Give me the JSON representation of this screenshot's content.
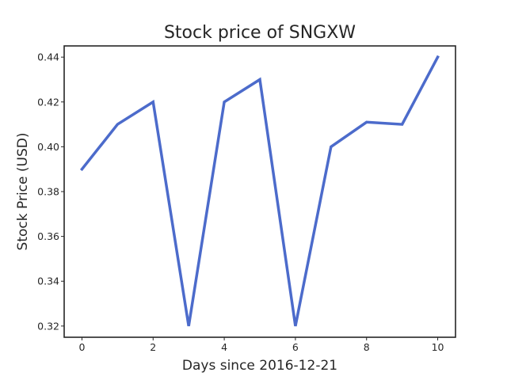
{
  "chart_data": {
    "type": "line",
    "title": "Stock price of SNGXW",
    "xlabel": "Days since 2016-12-21",
    "ylabel": "Stock Price (USD)",
    "xlim": [
      -0.5,
      10.5
    ],
    "ylim": [
      0.315,
      0.445
    ],
    "x_ticks": [
      0,
      2,
      4,
      6,
      8,
      10
    ],
    "y_ticks": [
      0.32,
      0.34,
      0.36,
      0.38,
      0.4,
      0.42,
      0.44
    ],
    "x_tick_labels": [
      "0",
      "2",
      "4",
      "6",
      "8",
      "10"
    ],
    "y_tick_labels": [
      "0.32",
      "0.34",
      "0.36",
      "0.38",
      "0.40",
      "0.42",
      "0.44"
    ],
    "grid": false,
    "legend": "none",
    "series": [
      {
        "color": "#4c6bcb",
        "x": [
          0,
          1,
          2,
          3,
          4,
          5,
          6,
          7,
          8,
          9,
          10
        ],
        "y": [
          0.39,
          0.41,
          0.42,
          0.32,
          0.42,
          0.43,
          0.32,
          0.4,
          0.411,
          0.41,
          0.44
        ]
      }
    ]
  }
}
